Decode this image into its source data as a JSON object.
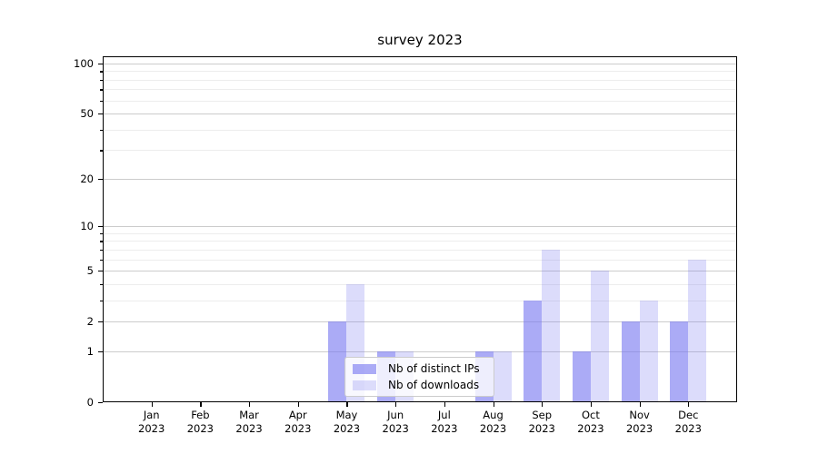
{
  "chart_data": {
    "type": "bar",
    "title": "survey 2023",
    "categories": [
      "Jan",
      "Feb",
      "Mar",
      "Apr",
      "May",
      "Jun",
      "Jul",
      "Aug",
      "Sep",
      "Oct",
      "Nov",
      "Dec"
    ],
    "x_tick_year": "2023",
    "series": [
      {
        "name": "Nb of distinct IPs",
        "color": "rgba(115,115,240,0.6)",
        "values": [
          0,
          0,
          0,
          0,
          2,
          1,
          0,
          1,
          3,
          1,
          2,
          2
        ]
      },
      {
        "name": "Nb of downloads",
        "color": "rgba(115,115,240,0.25)",
        "values": [
          0,
          0,
          0,
          0,
          4,
          1,
          0,
          1,
          7,
          5,
          3,
          6
        ]
      }
    ],
    "y_axis": {
      "scale": "log1p",
      "ylim": [
        0,
        100
      ],
      "ticks": [
        0,
        1,
        2,
        5,
        10,
        20,
        50,
        100
      ],
      "minor_ticks": [
        3,
        4,
        6,
        7,
        8,
        9,
        30,
        40,
        60,
        70,
        80,
        90
      ]
    },
    "legend": {
      "position": "lower center"
    },
    "grid": "horizontal major and minor",
    "colors": {
      "major_grid": "#cccccc",
      "minor_grid": "#ededed",
      "spine": "#000000",
      "background": "#ffffff"
    }
  }
}
